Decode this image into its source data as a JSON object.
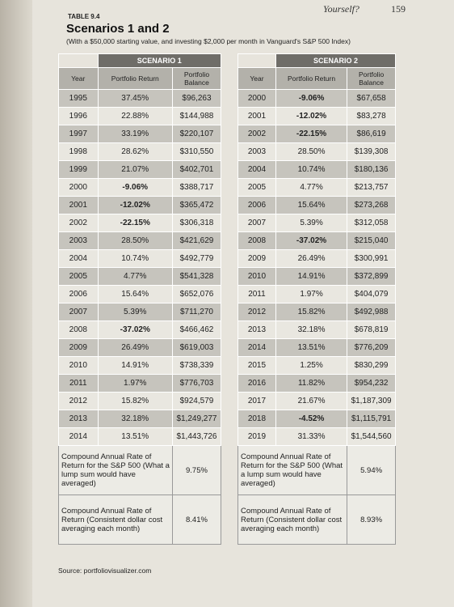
{
  "running_header": {
    "title": "Yourself?",
    "page": "159"
  },
  "table_label": "TABLE 9.4",
  "title": "Scenarios 1 and 2",
  "subtitle": "(With a $50,000 starting value, and investing $2,000 per month in Vanguard's S&P 500 Index)",
  "tables": [
    {
      "scenario": "SCENARIO 1",
      "columns": [
        "Year",
        "Portfolio Return",
        "Portfolio Balance"
      ],
      "rows": [
        [
          "1995",
          "37.45%",
          "$96,263"
        ],
        [
          "1996",
          "22.88%",
          "$144,988"
        ],
        [
          "1997",
          "33.19%",
          "$220,107"
        ],
        [
          "1998",
          "28.62%",
          "$310,550"
        ],
        [
          "1999",
          "21.07%",
          "$402,701"
        ],
        [
          "2000",
          "-9.06%",
          "$388,717"
        ],
        [
          "2001",
          "-12.02%",
          "$365,472"
        ],
        [
          "2002",
          "-22.15%",
          "$306,318"
        ],
        [
          "2003",
          "28.50%",
          "$421,629"
        ],
        [
          "2004",
          "10.74%",
          "$492,779"
        ],
        [
          "2005",
          "4.77%",
          "$541,328"
        ],
        [
          "2006",
          "15.64%",
          "$652,076"
        ],
        [
          "2007",
          "5.39%",
          "$711,270"
        ],
        [
          "2008",
          "-37.02%",
          "$466,462"
        ],
        [
          "2009",
          "26.49%",
          "$619,003"
        ],
        [
          "2010",
          "14.91%",
          "$738,339"
        ],
        [
          "2011",
          "1.97%",
          "$776,703"
        ],
        [
          "2012",
          "15.82%",
          "$924,579"
        ],
        [
          "2013",
          "32.18%",
          "$1,249,277"
        ],
        [
          "2014",
          "13.51%",
          "$1,443,726"
        ]
      ],
      "summary": [
        {
          "label": "Compound Annual Rate of Return for the S&P 500 (What a lump sum would have averaged)",
          "value": "9.75%"
        },
        {
          "label": "Compound Annual Rate of Return (Consistent dollar cost averaging each month)",
          "value": "8.41%"
        }
      ]
    },
    {
      "scenario": "SCENARIO 2",
      "columns": [
        "Year",
        "Portfolio Return",
        "Portfolio Balance"
      ],
      "rows": [
        [
          "2000",
          "-9.06%",
          "$67,658"
        ],
        [
          "2001",
          "-12.02%",
          "$83,278"
        ],
        [
          "2002",
          "-22.15%",
          "$86,619"
        ],
        [
          "2003",
          "28.50%",
          "$139,308"
        ],
        [
          "2004",
          "10.74%",
          "$180,136"
        ],
        [
          "2005",
          "4.77%",
          "$213,757"
        ],
        [
          "2006",
          "15.64%",
          "$273,268"
        ],
        [
          "2007",
          "5.39%",
          "$312,058"
        ],
        [
          "2008",
          "-37.02%",
          "$215,040"
        ],
        [
          "2009",
          "26.49%",
          "$300,991"
        ],
        [
          "2010",
          "14.91%",
          "$372,899"
        ],
        [
          "2011",
          "1.97%",
          "$404,079"
        ],
        [
          "2012",
          "15.82%",
          "$492,988"
        ],
        [
          "2013",
          "32.18%",
          "$678,819"
        ],
        [
          "2014",
          "13.51%",
          "$776,209"
        ],
        [
          "2015",
          "1.25%",
          "$830,299"
        ],
        [
          "2016",
          "11.82%",
          "$954,232"
        ],
        [
          "2017",
          "21.67%",
          "$1,187,309"
        ],
        [
          "2018",
          "-4.52%",
          "$1,115,791"
        ],
        [
          "2019",
          "31.33%",
          "$1,544,560"
        ]
      ],
      "summary": [
        {
          "label": "Compound Annual Rate of Return for the S&P 500 (What a lump sum would have averaged)",
          "value": "5.94%"
        },
        {
          "label": "Compound Annual Rate of Return (Consistent dollar cost averaging each month)",
          "value": "8.93%"
        }
      ]
    }
  ],
  "source": "Source: portfoliovisualizer.com"
}
